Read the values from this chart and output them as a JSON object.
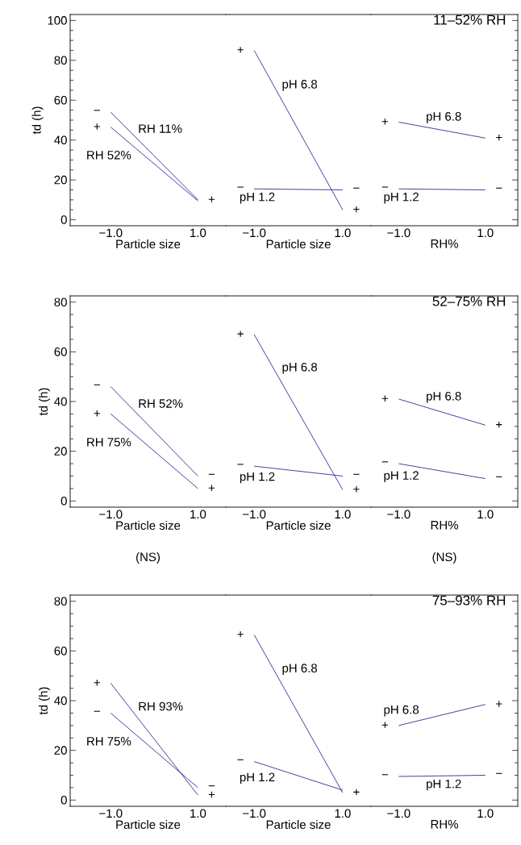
{
  "chart_data": [
    {
      "type": "line",
      "xlabel": "Particle size",
      "ylabel": "td (h)",
      "categories": [
        "−1.0",
        "1.0"
      ],
      "ylim": [
        -3,
        103
      ],
      "yticks": [
        0,
        {
          "value": 5,
          "label": null
        },
        {
          "value": 10,
          "label": null
        },
        {
          "value": 15,
          "label": null
        },
        20,
        {
          "value": 25,
          "label": null
        },
        {
          "value": 30,
          "label": null
        },
        {
          "value": 35,
          "label": null
        },
        40,
        {
          "value": 45,
          "label": null
        },
        {
          "value": 50,
          "label": null
        },
        {
          "value": 55,
          "label": null
        },
        60,
        {
          "value": 65,
          "label": null
        },
        {
          "value": 70,
          "label": null
        },
        {
          "value": 75,
          "label": null
        },
        80,
        {
          "value": 85,
          "label": null
        },
        {
          "value": 90,
          "label": null
        },
        {
          "value": 95,
          "label": null
        },
        100
      ],
      "series": [
        {
          "name": "RH 11%",
          "color": "#2e2e9a",
          "values": [
            54,
            10
          ]
        },
        {
          "name": "RH 52%",
          "color": "#2e2e9a",
          "values": [
            46.5,
            9.5
          ]
        }
      ],
      "annotations": [
        "−",
        "+",
        "+"
      ]
    },
    {
      "type": "line",
      "xlabel": "Particle size",
      "categories": [
        "−1.0",
        "1.0"
      ],
      "ylim": [
        -3,
        103
      ],
      "tick_labels": "x",
      "series": [
        {
          "name": "pH 6.8",
          "color": "#2e2e9a",
          "values": [
            85,
            5
          ]
        },
        {
          "name": "pH 1.2",
          "color": "#2e2e9a",
          "values": [
            15.5,
            15
          ]
        }
      ],
      "annotations": [
        "+",
        "+",
        "−",
        "−"
      ]
    },
    {
      "type": "line",
      "title": "11–52% RH",
      "xlabel": "RH%",
      "categories": [
        "−1.0",
        "1.0"
      ],
      "ylim": [
        -3,
        103
      ],
      "tick_labels": "x",
      "yticks": [
        0,
        {
          "value": 5,
          "label": null
        },
        {
          "value": 10,
          "label": null
        },
        {
          "value": 15,
          "label": null
        },
        20,
        {
          "value": 25,
          "label": null
        },
        {
          "value": 30,
          "label": null
        },
        {
          "value": 35,
          "label": null
        },
        40,
        {
          "value": 45,
          "label": null
        },
        {
          "value": 50,
          "label": null
        },
        {
          "value": 55,
          "label": null
        },
        60,
        {
          "value": 65,
          "label": null
        },
        {
          "value": 70,
          "label": null
        },
        {
          "value": 75,
          "label": null
        },
        80,
        {
          "value": 85,
          "label": null
        },
        {
          "value": 90,
          "label": null
        },
        {
          "value": 95,
          "label": null
        },
        100
      ],
      "series": [
        {
          "name": "pH 6.8",
          "color": "#2e2e9a",
          "values": [
            49,
            41
          ]
        },
        {
          "name": "pH 1.2",
          "color": "#2e2e9a",
          "values": [
            15.5,
            15
          ]
        }
      ],
      "annotations": [
        "+",
        "+",
        "−",
        "−"
      ]
    },
    {
      "type": "line",
      "xlabel": "Particle size",
      "ylabel": "td (h)",
      "categories": [
        "−1.0",
        "1.0"
      ],
      "ylim": [
        -2.5,
        82.5
      ],
      "yticks": [
        0,
        {
          "value": 5,
          "label": null
        },
        {
          "value": 10,
          "label": null
        },
        {
          "value": 15,
          "label": null
        },
        20,
        {
          "value": 25,
          "label": null
        },
        {
          "value": 30,
          "label": null
        },
        {
          "value": 35,
          "label": null
        },
        40,
        {
          "value": 45,
          "label": null
        },
        {
          "value": 50,
          "label": null
        },
        {
          "value": 55,
          "label": null
        },
        60,
        {
          "value": 65,
          "label": null
        },
        {
          "value": 70,
          "label": null
        },
        {
          "value": 75,
          "label": null
        },
        80
      ],
      "series": [
        {
          "name": "RH 52%",
          "color": "#2e2e9a",
          "values": [
            46,
            10
          ]
        },
        {
          "name": "RH 75%",
          "color": "#2e2e9a",
          "values": [
            35,
            5
          ]
        }
      ],
      "annotations": [
        "−",
        "−",
        "+",
        "+",
        "(NS)"
      ]
    },
    {
      "type": "line",
      "xlabel": "Particle size",
      "categories": [
        "−1.0",
        "1.0"
      ],
      "ylim": [
        -2.5,
        82.5
      ],
      "tick_labels": "x",
      "series": [
        {
          "name": "pH 6.8",
          "color": "#2e2e9a",
          "values": [
            67,
            4.5
          ]
        },
        {
          "name": "pH 1.2",
          "color": "#2e2e9a",
          "values": [
            14,
            10
          ]
        }
      ],
      "annotations": [
        "+",
        "+",
        "−",
        "−"
      ]
    },
    {
      "type": "line",
      "title": "52–75% RH",
      "xlabel": "RH%",
      "categories": [
        "−1.0",
        "1.0"
      ],
      "ylim": [
        -2.5,
        82.5
      ],
      "tick_labels": "x",
      "yticks": [
        0,
        {
          "value": 5,
          "label": null
        },
        {
          "value": 10,
          "label": null
        },
        {
          "value": 15,
          "label": null
        },
        20,
        {
          "value": 25,
          "label": null
        },
        {
          "value": 30,
          "label": null
        },
        {
          "value": 35,
          "label": null
        },
        40,
        {
          "value": 45,
          "label": null
        },
        {
          "value": 50,
          "label": null
        },
        {
          "value": 55,
          "label": null
        },
        60,
        {
          "value": 65,
          "label": null
        },
        {
          "value": 70,
          "label": null
        },
        {
          "value": 75,
          "label": null
        },
        80
      ],
      "series": [
        {
          "name": "pH 6.8",
          "color": "#2e2e9a",
          "values": [
            41,
            30.5
          ]
        },
        {
          "name": "pH 1.2",
          "color": "#2e2e9a",
          "values": [
            15,
            9
          ]
        }
      ],
      "annotations": [
        "+",
        "+",
        "−",
        "−",
        "(NS)"
      ]
    },
    {
      "type": "line",
      "xlabel": "Particle size",
      "ylabel": "td (h)",
      "categories": [
        "−1.0",
        "1.0"
      ],
      "ylim": [
        -2.5,
        82.5
      ],
      "yticks": [
        0,
        {
          "value": 5,
          "label": null
        },
        {
          "value": 10,
          "label": null
        },
        {
          "value": 15,
          "label": null
        },
        20,
        {
          "value": 25,
          "label": null
        },
        {
          "value": 30,
          "label": null
        },
        {
          "value": 35,
          "label": null
        },
        40,
        {
          "value": 45,
          "label": null
        },
        {
          "value": 50,
          "label": null
        },
        {
          "value": 55,
          "label": null
        },
        60,
        {
          "value": 65,
          "label": null
        },
        {
          "value": 70,
          "label": null
        },
        {
          "value": 75,
          "label": null
        },
        80
      ],
      "series": [
        {
          "name": "RH 93%",
          "color": "#2e2e9a",
          "values": [
            47,
            2
          ]
        },
        {
          "name": "RH 75%",
          "color": "#2e2e9a",
          "values": [
            35,
            5
          ]
        }
      ],
      "annotations": [
        "+",
        "+",
        "−",
        "−"
      ]
    },
    {
      "type": "line",
      "xlabel": "Particle size",
      "categories": [
        "−1.0",
        "1.0"
      ],
      "ylim": [
        -2.5,
        82.5
      ],
      "tick_labels": "x",
      "series": [
        {
          "name": "pH 6.8",
          "color": "#2e2e9a",
          "values": [
            66.5,
            3
          ]
        },
        {
          "name": "pH 1.2",
          "color": "#2e2e9a",
          "values": [
            15.5,
            4
          ]
        }
      ],
      "annotations": [
        "+",
        "+",
        "−"
      ]
    },
    {
      "type": "line",
      "title": "75–93% RH",
      "xlabel": "RH%",
      "categories": [
        "−1.0",
        "1.0"
      ],
      "ylim": [
        -2.5,
        82.5
      ],
      "tick_labels": "x",
      "yticks": [
        0,
        {
          "value": 5,
          "label": null
        },
        {
          "value": 10,
          "label": null
        },
        {
          "value": 15,
          "label": null
        },
        20,
        {
          "value": 25,
          "label": null
        },
        {
          "value": 30,
          "label": null
        },
        {
          "value": 35,
          "label": null
        },
        40,
        {
          "value": 45,
          "label": null
        },
        {
          "value": 50,
          "label": null
        },
        {
          "value": 55,
          "label": null
        },
        60,
        {
          "value": 65,
          "label": null
        },
        {
          "value": 70,
          "label": null
        },
        {
          "value": 75,
          "label": null
        },
        80
      ],
      "series": [
        {
          "name": "pH 6.8",
          "color": "#2e2e9a",
          "values": [
            30,
            38.5
          ]
        },
        {
          "name": "pH 1.2",
          "color": "#2e2e9a",
          "values": [
            9.5,
            10
          ]
        }
      ],
      "annotations": [
        "+",
        "+",
        "−",
        "−"
      ]
    }
  ]
}
